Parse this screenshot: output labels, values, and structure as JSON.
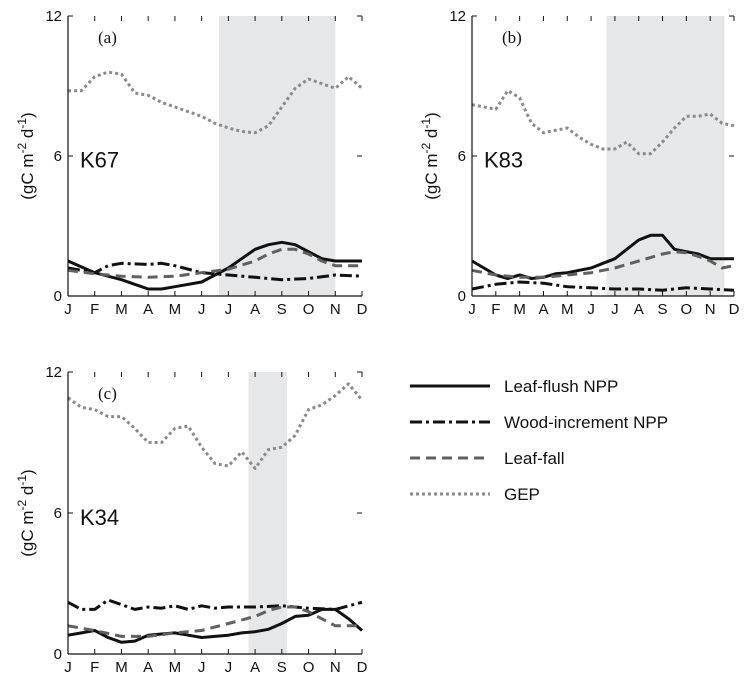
{
  "chart_data": [
    {
      "type": "line",
      "panel_tag": "(a)",
      "site_label": "K67",
      "ylabel": "(gC m^-2 d^-1)",
      "ylim": [
        0,
        12
      ],
      "yticks": [
        "0",
        "6",
        "12"
      ],
      "categories": [
        "J",
        "F",
        "M",
        "A",
        "M",
        "J",
        "J",
        "A",
        "S",
        "O",
        "N",
        "D"
      ],
      "shade": [
        5.65,
        10.0
      ],
      "series": [
        {
          "name": "Leaf-flush NPP",
          "x": [
            0,
            1,
            2,
            3,
            3.5,
            4,
            5,
            5.5,
            6,
            6.5,
            7,
            7.5,
            8,
            8.5,
            9,
            9.5,
            10,
            11
          ],
          "y": [
            1.5,
            1.0,
            0.7,
            0.3,
            0.3,
            0.4,
            0.6,
            0.9,
            1.2,
            1.6,
            2.0,
            2.2,
            2.3,
            2.2,
            1.9,
            1.6,
            1.5,
            1.5
          ]
        },
        {
          "name": "Wood-increment NPP",
          "x": [
            0,
            1,
            1.5,
            2,
            3,
            3.5,
            4,
            5,
            6,
            7,
            8,
            9,
            10,
            11
          ],
          "y": [
            1.2,
            1.0,
            1.3,
            1.4,
            1.35,
            1.4,
            1.3,
            1.0,
            0.9,
            0.8,
            0.7,
            0.75,
            0.9,
            0.85
          ]
        },
        {
          "name": "Leaf-fall",
          "x": [
            0,
            1,
            2,
            3,
            4,
            5,
            6,
            7,
            7.5,
            8,
            8.5,
            9,
            9.5,
            10,
            11
          ],
          "y": [
            1.1,
            0.95,
            0.85,
            0.8,
            0.85,
            1.0,
            1.15,
            1.5,
            1.8,
            2.0,
            2.0,
            1.8,
            1.5,
            1.3,
            1.3
          ]
        },
        {
          "name": "GEP",
          "x": [
            0,
            0.5,
            1,
            1.5,
            2,
            2.5,
            3,
            3.5,
            4,
            4.5,
            5,
            5.5,
            6,
            6.5,
            7,
            7.5,
            8,
            8.5,
            9,
            9.5,
            10,
            10.5,
            11
          ],
          "y": [
            8.8,
            8.8,
            9.4,
            9.6,
            9.5,
            8.7,
            8.6,
            8.3,
            8.1,
            7.9,
            7.7,
            7.4,
            7.2,
            7.05,
            7.0,
            7.3,
            8.1,
            8.9,
            9.3,
            9.1,
            8.9,
            9.4,
            8.9
          ]
        }
      ]
    },
    {
      "type": "line",
      "panel_tag": "(b)",
      "site_label": "K83",
      "ylabel": "(gC m^-2 d^-1)",
      "ylim": [
        0,
        12
      ],
      "yticks": [
        "0",
        "6",
        "12"
      ],
      "categories": [
        "J",
        "F",
        "M",
        "A",
        "M",
        "J",
        "J",
        "A",
        "S",
        "O",
        "N",
        "D"
      ],
      "shade": [
        5.65,
        10.6
      ],
      "series": [
        {
          "name": "Leaf-flush NPP",
          "x": [
            0,
            0.5,
            1,
            1.5,
            2,
            2.5,
            3,
            3.5,
            4,
            4.5,
            5,
            5.5,
            6,
            6.5,
            7,
            7.5,
            8,
            8.5,
            9,
            9.5,
            10,
            10.5,
            11
          ],
          "y": [
            1.5,
            1.2,
            0.9,
            0.75,
            0.9,
            0.75,
            0.8,
            0.95,
            1.0,
            1.1,
            1.2,
            1.4,
            1.6,
            2.0,
            2.4,
            2.6,
            2.6,
            2.0,
            1.9,
            1.8,
            1.6,
            1.6,
            1.6
          ]
        },
        {
          "name": "Wood-increment NPP",
          "x": [
            0,
            1,
            2,
            3,
            4,
            5,
            6,
            7,
            8,
            9,
            10,
            11
          ],
          "y": [
            0.3,
            0.5,
            0.6,
            0.55,
            0.4,
            0.35,
            0.3,
            0.3,
            0.25,
            0.35,
            0.3,
            0.25
          ]
        },
        {
          "name": "Leaf-fall",
          "x": [
            0,
            1,
            2,
            3,
            4,
            5,
            6,
            7,
            8,
            8.5,
            9,
            9.5,
            10,
            10.5,
            11
          ],
          "y": [
            1.1,
            0.9,
            0.8,
            0.8,
            0.9,
            1.0,
            1.2,
            1.5,
            1.8,
            1.9,
            1.85,
            1.7,
            1.5,
            1.2,
            1.3
          ]
        },
        {
          "name": "GEP",
          "x": [
            0,
            0.5,
            1,
            1.5,
            2,
            2.5,
            3,
            3.5,
            4,
            4.5,
            5,
            5.5,
            6,
            6.5,
            7,
            7.5,
            8,
            8.5,
            9,
            9.5,
            10,
            10.5,
            11
          ],
          "y": [
            8.2,
            8.1,
            8.0,
            8.8,
            8.5,
            7.4,
            7.0,
            7.1,
            7.2,
            6.8,
            6.5,
            6.3,
            6.3,
            6.6,
            6.1,
            6.1,
            6.6,
            7.2,
            7.7,
            7.7,
            7.8,
            7.4,
            7.3
          ]
        }
      ]
    },
    {
      "type": "line",
      "panel_tag": "(c)",
      "site_label": "K34",
      "ylabel": "(gC m^-2 d^-1)",
      "ylim": [
        0,
        12
      ],
      "yticks": [
        "0",
        "6",
        "12"
      ],
      "categories": [
        "J",
        "F",
        "M",
        "A",
        "M",
        "J",
        "J",
        "A",
        "S",
        "O",
        "N",
        "D"
      ],
      "shade": [
        6.75,
        8.2
      ],
      "series": [
        {
          "name": "Leaf-flush NPP",
          "x": [
            0,
            0.5,
            1,
            1.5,
            2,
            2.5,
            3,
            3.5,
            4,
            4.5,
            5,
            5.5,
            6,
            6.5,
            7,
            7.5,
            8,
            8.5,
            9,
            9.5,
            10,
            10.5,
            11
          ],
          "y": [
            0.8,
            0.9,
            1.0,
            0.7,
            0.5,
            0.55,
            0.8,
            0.85,
            0.9,
            0.8,
            0.7,
            0.75,
            0.8,
            0.9,
            0.95,
            1.05,
            1.3,
            1.6,
            1.65,
            1.9,
            1.9,
            1.5,
            1.0
          ]
        },
        {
          "name": "Wood-increment NPP",
          "x": [
            0,
            0.5,
            1,
            1.5,
            2,
            2.5,
            3,
            3.5,
            4,
            4.5,
            5,
            5.5,
            6,
            7,
            8,
            9,
            10,
            11
          ],
          "y": [
            2.2,
            1.9,
            1.9,
            2.3,
            2.1,
            1.9,
            2.0,
            1.95,
            2.05,
            1.9,
            2.05,
            1.95,
            2.0,
            2.0,
            2.05,
            1.95,
            1.9,
            2.2
          ]
        },
        {
          "name": "Leaf-fall",
          "x": [
            0,
            1,
            2,
            3,
            4,
            5,
            6,
            7,
            7.5,
            8,
            8.5,
            9,
            9.5,
            10,
            10.5,
            11
          ],
          "y": [
            1.2,
            1.0,
            0.75,
            0.75,
            0.9,
            1.0,
            1.3,
            1.6,
            1.85,
            2.0,
            2.0,
            1.8,
            1.5,
            1.2,
            1.2,
            1.2
          ]
        },
        {
          "name": "GEP",
          "x": [
            0,
            0.5,
            1,
            1.5,
            2,
            2.5,
            3,
            3.5,
            4,
            4.5,
            5,
            5.5,
            6,
            6.5,
            7,
            7.5,
            8,
            8.5,
            9,
            9.5,
            10,
            10.5,
            11
          ],
          "y": [
            10.9,
            10.5,
            10.4,
            10.1,
            10.1,
            9.6,
            9.0,
            9.0,
            9.6,
            9.7,
            8.8,
            8.1,
            8.0,
            8.6,
            7.9,
            8.7,
            8.8,
            9.3,
            10.4,
            10.6,
            11.0,
            11.5,
            10.8
          ]
        }
      ]
    }
  ],
  "legend": {
    "items": [
      {
        "label": "Leaf-flush NPP"
      },
      {
        "label": "Wood-increment NPP"
      },
      {
        "label": "Leaf-fall"
      },
      {
        "label": "GEP"
      }
    ]
  },
  "styles": {
    "shade_color": "#e6e7e8",
    "axis_color": "#111111",
    "series": {
      "Leaf-flush NPP": {
        "color": "#111111",
        "dash": "solid"
      },
      "Wood-increment NPP": {
        "color": "#111111",
        "dash": "dash-dot"
      },
      "Leaf-fall": {
        "color": "#606060",
        "dash": "dashed"
      },
      "GEP": {
        "color": "#8a8a8a",
        "dash": "dotted"
      }
    }
  }
}
